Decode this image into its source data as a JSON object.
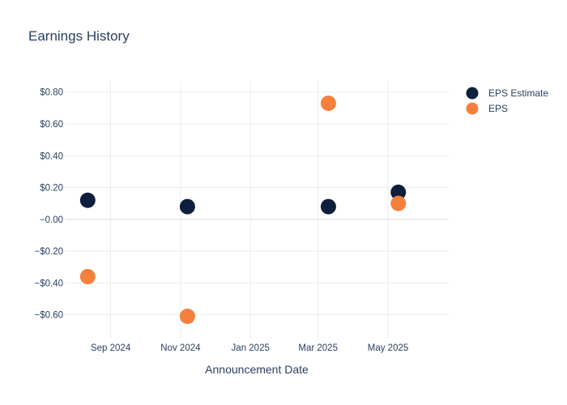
{
  "chart_data": {
    "type": "scatter",
    "title": "Earnings History",
    "xlabel": "Announcement Date",
    "ylabel": "",
    "x_tick_labels": [
      "Sep 2024",
      "Nov 2024",
      "Jan 2025",
      "Mar 2025",
      "May 2025"
    ],
    "x_tick_dates": [
      "2024-09-01",
      "2024-11-01",
      "2025-01-01",
      "2025-03-01",
      "2025-05-01"
    ],
    "x_range": [
      "2024-07-23",
      "2025-06-23"
    ],
    "y_tick_labels": [
      "$0.80",
      "$0.60",
      "$0.40",
      "$0.20",
      "−0.00",
      "−$0.20",
      "−$0.40",
      "−$0.60"
    ],
    "y_tick_values": [
      0.8,
      0.6,
      0.4,
      0.2,
      0,
      -0.2,
      -0.4,
      -0.6
    ],
    "ylim": [
      -0.75,
      0.87
    ],
    "grid": true,
    "legend_position": "top-right",
    "series": [
      {
        "name": "EPS Estimate",
        "color": "#0d1f3c",
        "points": [
          {
            "x": "2024-08-12",
            "y": 0.12
          },
          {
            "x": "2024-11-07",
            "y": 0.08
          },
          {
            "x": "2025-03-10",
            "y": 0.08
          },
          {
            "x": "2025-05-10",
            "y": 0.17
          }
        ]
      },
      {
        "name": "EPS",
        "color": "#f5803e",
        "points": [
          {
            "x": "2024-08-12",
            "y": -0.36
          },
          {
            "x": "2024-11-07",
            "y": -0.61
          },
          {
            "x": "2025-03-10",
            "y": 0.73
          },
          {
            "x": "2025-05-10",
            "y": 0.1
          }
        ]
      }
    ]
  }
}
